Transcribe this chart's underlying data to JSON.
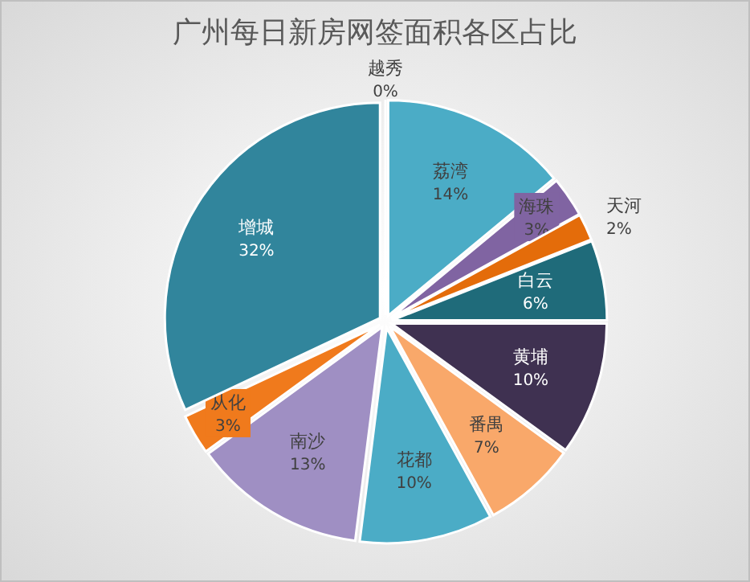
{
  "chart_data": {
    "type": "pie",
    "title": "广州每日新房网签面积各区占比",
    "categories": [
      "越秀",
      "荔湾",
      "海珠",
      "天河",
      "白云",
      "黄埔",
      "番禺",
      "花都",
      "南沙",
      "从化",
      "增城"
    ],
    "values": [
      0,
      14,
      3,
      2,
      6,
      10,
      7,
      10,
      13,
      3,
      32
    ],
    "colors": [
      "#2c4d75",
      "#4bacc6",
      "#8064a2",
      "#e46c0a",
      "#1f6b7a",
      "#3f3151",
      "#f9a86a",
      "#4bacc6",
      "#9f8fc3",
      "#f07a1c",
      "#31859c"
    ],
    "value_labels": [
      "0%",
      "14%",
      "3%",
      "2%",
      "6%",
      "10%",
      "7%",
      "10%",
      "13%",
      "3%",
      "32%"
    ]
  }
}
